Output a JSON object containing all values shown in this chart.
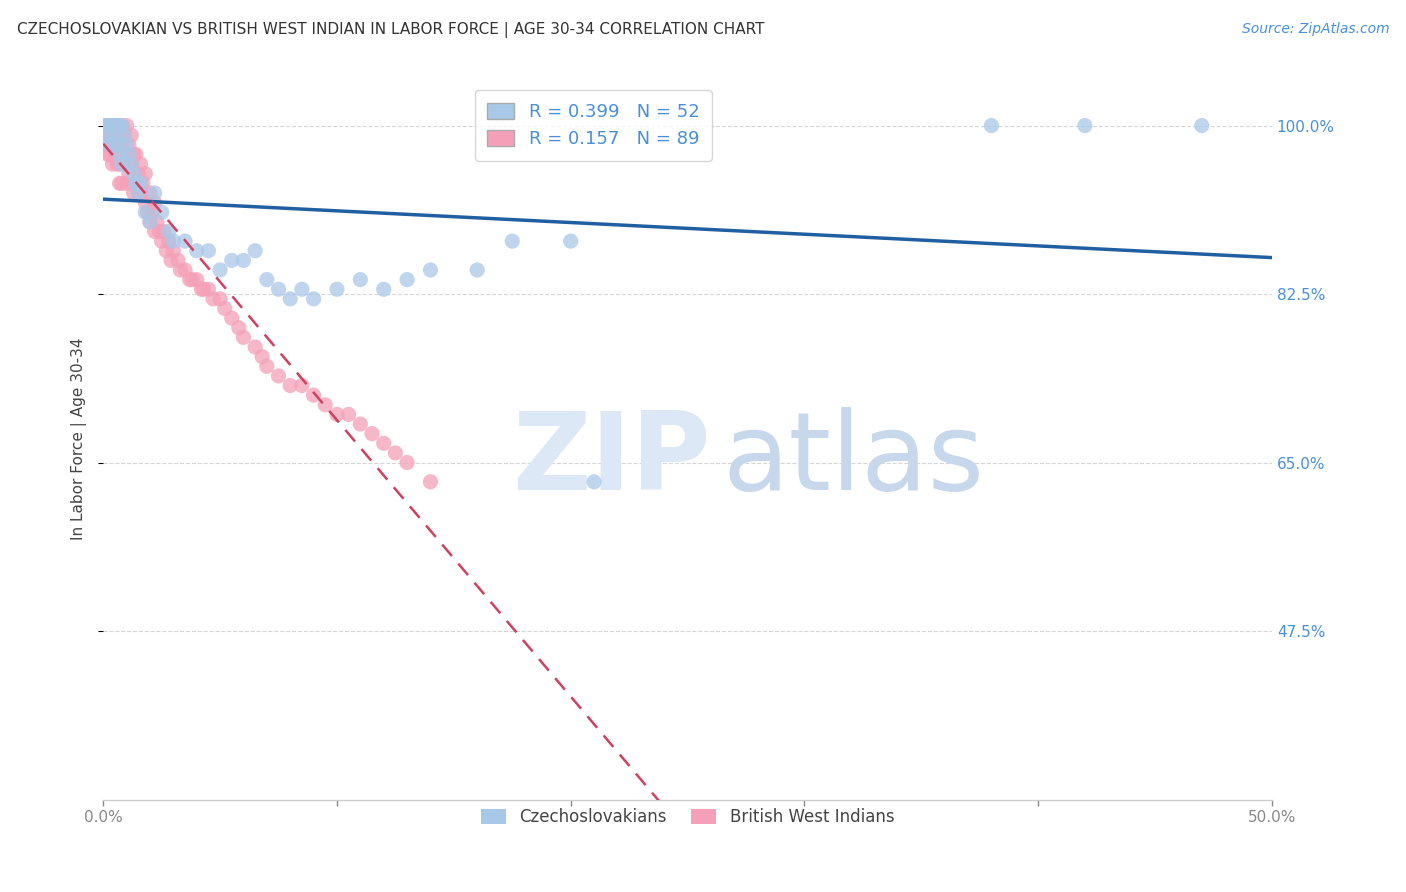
{
  "title": "CZECHOSLOVAKIAN VS BRITISH WEST INDIAN IN LABOR FORCE | AGE 30-34 CORRELATION CHART",
  "source": "Source: ZipAtlas.com",
  "ylabel": "In Labor Force | Age 30-34",
  "xlim": [
    0.0,
    0.5
  ],
  "ylim": [
    0.3,
    1.05
  ],
  "xticks": [
    0.0,
    0.1,
    0.2,
    0.3,
    0.4,
    0.5
  ],
  "xticklabels": [
    "0.0%",
    "",
    "",
    "",
    "",
    "50.0%"
  ],
  "yticks": [
    0.475,
    0.65,
    0.825,
    1.0
  ],
  "yticklabels": [
    "47.5%",
    "65.0%",
    "82.5%",
    "100.0%"
  ],
  "blue_color": "#a8c8e8",
  "pink_color": "#f4a0b8",
  "blue_line_color": "#2060a0",
  "pink_line_color": "#d04060",
  "R_blue": 0.399,
  "N_blue": 52,
  "R_pink": 0.157,
  "N_pink": 89,
  "grid_color": "#cccccc",
  "blue_scatter_x": [
    0.001,
    0.002,
    0.002,
    0.003,
    0.003,
    0.004,
    0.005,
    0.005,
    0.006,
    0.006,
    0.007,
    0.007,
    0.008,
    0.008,
    0.009,
    0.01,
    0.011,
    0.012,
    0.013,
    0.014,
    0.015,
    0.016,
    0.018,
    0.02,
    0.022,
    0.025,
    0.028,
    0.03,
    0.035,
    0.04,
    0.045,
    0.05,
    0.055,
    0.06,
    0.065,
    0.07,
    0.075,
    0.08,
    0.085,
    0.09,
    0.1,
    0.11,
    0.12,
    0.13,
    0.14,
    0.16,
    0.175,
    0.2,
    0.21,
    0.38,
    0.42,
    0.47
  ],
  "blue_scatter_y": [
    1.0,
    1.0,
    0.99,
    1.0,
    0.98,
    1.0,
    1.0,
    0.99,
    1.0,
    0.98,
    1.0,
    0.97,
    1.0,
    0.96,
    0.99,
    0.98,
    0.97,
    0.96,
    0.95,
    0.94,
    0.93,
    0.94,
    0.91,
    0.9,
    0.93,
    0.91,
    0.89,
    0.88,
    0.88,
    0.87,
    0.87,
    0.85,
    0.86,
    0.86,
    0.87,
    0.84,
    0.83,
    0.82,
    0.83,
    0.82,
    0.83,
    0.84,
    0.83,
    0.84,
    0.85,
    0.85,
    0.88,
    0.88,
    0.63,
    1.0,
    1.0,
    1.0
  ],
  "pink_scatter_x": [
    0.001,
    0.001,
    0.002,
    0.002,
    0.002,
    0.003,
    0.003,
    0.003,
    0.004,
    0.004,
    0.004,
    0.005,
    0.005,
    0.005,
    0.006,
    0.006,
    0.006,
    0.007,
    0.007,
    0.007,
    0.007,
    0.008,
    0.008,
    0.008,
    0.009,
    0.009,
    0.01,
    0.01,
    0.01,
    0.011,
    0.011,
    0.012,
    0.012,
    0.013,
    0.013,
    0.014,
    0.014,
    0.015,
    0.015,
    0.016,
    0.016,
    0.017,
    0.018,
    0.018,
    0.019,
    0.02,
    0.02,
    0.021,
    0.022,
    0.022,
    0.023,
    0.024,
    0.025,
    0.026,
    0.027,
    0.028,
    0.029,
    0.03,
    0.032,
    0.033,
    0.035,
    0.037,
    0.038,
    0.04,
    0.042,
    0.043,
    0.045,
    0.047,
    0.05,
    0.052,
    0.055,
    0.058,
    0.06,
    0.065,
    0.068,
    0.07,
    0.075,
    0.08,
    0.085,
    0.09,
    0.095,
    0.1,
    0.105,
    0.11,
    0.115,
    0.12,
    0.125,
    0.13,
    0.14
  ],
  "pink_scatter_y": [
    1.0,
    0.98,
    1.0,
    0.99,
    0.97,
    1.0,
    0.99,
    0.97,
    1.0,
    0.98,
    0.96,
    1.0,
    0.99,
    0.97,
    1.0,
    0.98,
    0.96,
    1.0,
    0.98,
    0.96,
    0.94,
    1.0,
    0.98,
    0.94,
    0.99,
    0.96,
    1.0,
    0.97,
    0.94,
    0.98,
    0.95,
    0.99,
    0.96,
    0.97,
    0.93,
    0.97,
    0.94,
    0.95,
    0.93,
    0.96,
    0.93,
    0.94,
    0.95,
    0.92,
    0.91,
    0.93,
    0.9,
    0.91,
    0.92,
    0.89,
    0.9,
    0.89,
    0.88,
    0.89,
    0.87,
    0.88,
    0.86,
    0.87,
    0.86,
    0.85,
    0.85,
    0.84,
    0.84,
    0.84,
    0.83,
    0.83,
    0.83,
    0.82,
    0.82,
    0.81,
    0.8,
    0.79,
    0.78,
    0.77,
    0.76,
    0.75,
    0.74,
    0.73,
    0.73,
    0.72,
    0.71,
    0.7,
    0.7,
    0.69,
    0.68,
    0.67,
    0.66,
    0.65,
    0.63
  ]
}
